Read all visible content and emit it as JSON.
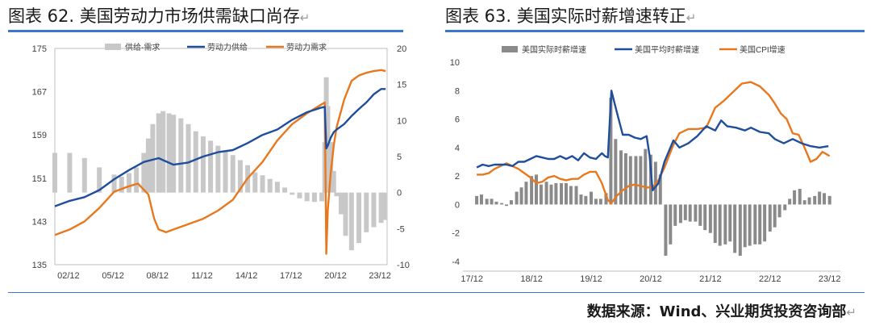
{
  "left_title": "图表 62. 美国劳动力市场供需缺口尚存",
  "right_title": "图表 63. 美国实际时薪增速转正",
  "source": "数据来源：Wind、兴业期货投资咨询部",
  "return_mark": "↵",
  "colors": {
    "accent": "#3a78c8",
    "navy": "#1f4e9c",
    "orange": "#e8781e",
    "grey_bar": "#c8c8c8",
    "dark_bar": "#8a8a8a"
  },
  "chart_data": [
    {
      "type": "bar+line",
      "title": "美国劳动力市场供需缺口尚存",
      "x_ticks": [
        "02/12",
        "05/12",
        "08/12",
        "11/12",
        "14/12",
        "17/12",
        "20/12",
        "23/12"
      ],
      "x_tick_values": [
        2002.92,
        2005.92,
        2008.92,
        2011.92,
        2014.92,
        2017.92,
        2020.92,
        2023.92
      ],
      "xlim": [
        2002.0,
        2024.4
      ],
      "left_axis": {
        "ticks": [
          135,
          143,
          151,
          159,
          167,
          175
        ],
        "ylim": [
          135,
          175
        ]
      },
      "right_axis": {
        "ticks": [
          -10,
          -5,
          0,
          5,
          10,
          15,
          20
        ],
        "ylim": [
          -10,
          20
        ]
      },
      "legend": [
        "供给-需求",
        "劳动力供给",
        "劳动力需求"
      ],
      "legend_position": "top",
      "series": [
        {
          "name": "供给-需求",
          "kind": "bar",
          "axis": "right",
          "x": [
            2002.0,
            2003.0,
            2004.0,
            2005.0,
            2006.0,
            2006.5,
            2007.0,
            2007.5,
            2008.0,
            2008.3,
            2008.6,
            2009.0,
            2009.3,
            2009.7,
            2010.0,
            2010.5,
            2011.0,
            2011.5,
            2012.0,
            2012.5,
            2013.0,
            2013.5,
            2014.0,
            2014.5,
            2015.0,
            2015.5,
            2016.0,
            2016.5,
            2017.0,
            2017.5,
            2018.0,
            2018.5,
            2019.0,
            2019.5,
            2020.0,
            2020.2,
            2020.3,
            2020.4,
            2020.6,
            2020.8,
            2021.0,
            2021.3,
            2021.6,
            2022.0,
            2022.5,
            2023.0,
            2023.5,
            2024.0,
            2024.2
          ],
          "values": [
            5.5,
            5.5,
            4.8,
            3.5,
            2.5,
            2.2,
            2.7,
            3.5,
            5.5,
            7.5,
            9.5,
            11.0,
            11.3,
            11.0,
            10.8,
            10.3,
            9.5,
            8.5,
            7.8,
            7.2,
            6.5,
            5.8,
            5.2,
            4.5,
            3.8,
            2.8,
            2.4,
            1.9,
            1.5,
            0.7,
            -0.3,
            -0.8,
            -1.2,
            -1.3,
            -1.2,
            7.0,
            16.0,
            12.0,
            7.0,
            3.0,
            -0.5,
            -3.0,
            -6.0,
            -8.0,
            -7.0,
            -5.5,
            -4.8,
            -4.2,
            -3.8
          ]
        },
        {
          "name": "劳动力供给",
          "kind": "line",
          "axis": "left",
          "x": [
            2002.0,
            2003.0,
            2004.0,
            2005.0,
            2006.0,
            2007.0,
            2008.0,
            2009.0,
            2010.0,
            2011.0,
            2012.0,
            2013.0,
            2014.0,
            2015.0,
            2016.0,
            2017.0,
            2018.0,
            2019.0,
            2019.9,
            2020.2,
            2020.3,
            2020.4,
            2020.6,
            2020.8,
            2021.0,
            2021.5,
            2022.0,
            2022.5,
            2023.0,
            2023.5,
            2024.0,
            2024.3
          ],
          "values": [
            145.8,
            146.8,
            147.5,
            148.8,
            150.8,
            152.5,
            154.0,
            154.7,
            153.5,
            153.9,
            155.0,
            155.8,
            156.2,
            157.5,
            159.0,
            160.0,
            161.8,
            163.2,
            164.0,
            164.2,
            156.5,
            157.0,
            158.5,
            159.5,
            160.0,
            161.0,
            162.5,
            163.8,
            165.0,
            166.5,
            167.5,
            167.5
          ]
        },
        {
          "name": "劳动力需求",
          "kind": "line",
          "axis": "left",
          "x": [
            2002.0,
            2003.0,
            2004.0,
            2005.0,
            2006.0,
            2007.0,
            2007.6,
            2008.3,
            2008.7,
            2009.0,
            2009.5,
            2010.0,
            2011.0,
            2012.0,
            2013.0,
            2014.0,
            2015.0,
            2016.0,
            2017.0,
            2018.0,
            2019.0,
            2019.9,
            2020.2,
            2020.3,
            2020.4,
            2020.6,
            2020.8,
            2021.0,
            2021.5,
            2022.0,
            2022.5,
            2023.0,
            2023.5,
            2024.0,
            2024.3
          ],
          "values": [
            140.5,
            141.5,
            143.0,
            145.5,
            148.5,
            149.5,
            150.0,
            148.0,
            143.5,
            141.5,
            141.0,
            141.5,
            142.5,
            143.5,
            145.0,
            147.0,
            151.0,
            154.0,
            158.0,
            161.0,
            163.0,
            164.5,
            165.0,
            137.0,
            145.0,
            152.0,
            157.0,
            160.5,
            165.5,
            169.0,
            170.0,
            170.5,
            170.8,
            171.0,
            170.8
          ]
        }
      ]
    },
    {
      "type": "bar+line",
      "title": "美国实际时薪增速转正",
      "x_ticks": [
        "17/12",
        "18/12",
        "19/12",
        "20/12",
        "21/12",
        "22/12",
        "23/12"
      ],
      "x_tick_values": [
        2017.92,
        2018.92,
        2019.92,
        2020.92,
        2021.92,
        2022.92,
        2023.92
      ],
      "xlim": [
        2017.85,
        2024.1
      ],
      "y_axis": {
        "ticks": [
          -4,
          -2,
          0,
          2,
          4,
          6,
          8,
          10
        ],
        "ylim": [
          -4,
          10
        ]
      },
      "legend": [
        "美国实际时薪增速",
        "美国平均时薪增速",
        "美国CPI增速"
      ],
      "legend_position": "top",
      "series": [
        {
          "name": "美国实际时薪增速",
          "kind": "bar",
          "x": [
            2018.0,
            2018.08,
            2018.17,
            2018.25,
            2018.33,
            2018.42,
            2018.5,
            2018.58,
            2018.67,
            2018.75,
            2018.83,
            2018.92,
            2019.0,
            2019.08,
            2019.17,
            2019.25,
            2019.33,
            2019.42,
            2019.5,
            2019.58,
            2019.67,
            2019.75,
            2019.83,
            2019.92,
            2020.0,
            2020.08,
            2020.17,
            2020.25,
            2020.33,
            2020.42,
            2020.5,
            2020.58,
            2020.67,
            2020.75,
            2020.83,
            2020.92,
            2021.0,
            2021.08,
            2021.17,
            2021.25,
            2021.33,
            2021.42,
            2021.5,
            2021.58,
            2021.67,
            2021.75,
            2021.83,
            2021.92,
            2022.0,
            2022.08,
            2022.17,
            2022.25,
            2022.33,
            2022.42,
            2022.5,
            2022.58,
            2022.67,
            2022.75,
            2022.83,
            2022.92,
            2023.0,
            2023.08,
            2023.17,
            2023.25,
            2023.33,
            2023.42,
            2023.5,
            2023.58,
            2023.67,
            2023.75,
            2023.83,
            2023.92
          ],
          "values": [
            0.6,
            0.7,
            0.4,
            0.4,
            0.2,
            0.1,
            -0.1,
            0.3,
            0.9,
            1.2,
            1.6,
            2.0,
            2.1,
            1.4,
            1.6,
            1.4,
            1.5,
            1.5,
            1.5,
            1.3,
            1.3,
            0.7,
            0.6,
            0.9,
            0.4,
            0.4,
            0.8,
            7.5,
            4.6,
            3.8,
            3.6,
            3.4,
            3.4,
            3.4,
            3.9,
            3.5,
            3.0,
            2.1,
            -3.6,
            -2.8,
            -1.5,
            -1.3,
            -1.1,
            -1.2,
            -1.2,
            -1.5,
            -1.8,
            -2.0,
            -2.7,
            -2.9,
            -2.8,
            -2.6,
            -3.4,
            -3.6,
            -3.0,
            -2.9,
            -2.8,
            -2.8,
            -2.6,
            -1.9,
            -1.6,
            -0.9,
            -0.4,
            0.4,
            1.0,
            1.1,
            0.3,
            0.5,
            0.6,
            0.9,
            0.8,
            0.6
          ]
        },
        {
          "name": "美国平均时薪增速",
          "kind": "line",
          "x": [
            2018.0,
            2018.1,
            2018.2,
            2018.3,
            2018.4,
            2018.5,
            2018.6,
            2018.7,
            2018.8,
            2018.9,
            2019.0,
            2019.1,
            2019.2,
            2019.3,
            2019.4,
            2019.5,
            2019.6,
            2019.7,
            2019.8,
            2019.9,
            2020.0,
            2020.1,
            2020.15,
            2020.2,
            2020.26,
            2020.35,
            2020.45,
            2020.55,
            2020.65,
            2020.75,
            2020.85,
            2020.9,
            2020.95,
            2021.05,
            2021.15,
            2021.3,
            2021.4,
            2021.55,
            2021.7,
            2021.85,
            2022.0,
            2022.1,
            2022.2,
            2022.35,
            2022.5,
            2022.6,
            2022.75,
            2022.9,
            2023.0,
            2023.15,
            2023.3,
            2023.45,
            2023.6,
            2023.75,
            2023.9
          ],
          "values": [
            2.6,
            2.8,
            2.7,
            2.8,
            2.8,
            2.8,
            2.7,
            3.0,
            3.0,
            3.2,
            3.4,
            3.3,
            3.2,
            3.2,
            3.4,
            3.2,
            3.4,
            3.1,
            3.6,
            3.3,
            3.2,
            3.6,
            3.4,
            3.3,
            8.0,
            6.5,
            4.9,
            4.9,
            4.7,
            4.6,
            4.8,
            3.4,
            1.0,
            1.5,
            3.0,
            4.5,
            4.0,
            4.3,
            4.8,
            5.5,
            5.2,
            5.9,
            5.5,
            5.4,
            5.2,
            5.4,
            5.1,
            5.0,
            4.6,
            4.3,
            4.6,
            4.3,
            4.1,
            4.0,
            4.1
          ]
        },
        {
          "name": "美国CPI增速",
          "kind": "line",
          "x": [
            2018.0,
            2018.1,
            2018.2,
            2018.3,
            2018.4,
            2018.5,
            2018.6,
            2018.7,
            2018.8,
            2018.9,
            2019.0,
            2019.1,
            2019.2,
            2019.3,
            2019.4,
            2019.5,
            2019.6,
            2019.7,
            2019.8,
            2019.9,
            2020.0,
            2020.1,
            2020.2,
            2020.26,
            2020.35,
            2020.45,
            2020.55,
            2020.65,
            2020.75,
            2020.85,
            2020.95,
            2021.05,
            2021.15,
            2021.3,
            2021.4,
            2021.55,
            2021.7,
            2021.85,
            2022.0,
            2022.15,
            2022.3,
            2022.45,
            2022.6,
            2022.75,
            2022.9,
            2023.0,
            2023.1,
            2023.2,
            2023.3,
            2023.4,
            2023.5,
            2023.6,
            2023.7,
            2023.8,
            2023.92
          ],
          "values": [
            2.1,
            2.1,
            2.2,
            2.5,
            2.7,
            2.9,
            2.7,
            2.5,
            2.2,
            1.9,
            1.5,
            1.6,
            1.9,
            2.0,
            1.8,
            1.7,
            1.8,
            1.8,
            2.1,
            2.3,
            2.3,
            1.5,
            0.3,
            0.1,
            0.6,
            1.0,
            1.3,
            1.4,
            1.3,
            1.2,
            1.2,
            1.7,
            2.6,
            4.2,
            5.0,
            5.3,
            5.3,
            5.4,
            6.8,
            7.3,
            7.9,
            8.5,
            8.6,
            8.3,
            7.7,
            7.1,
            6.4,
            6.0,
            5.0,
            4.9,
            4.0,
            3.0,
            3.2,
            3.7,
            3.4
          ]
        }
      ]
    }
  ]
}
